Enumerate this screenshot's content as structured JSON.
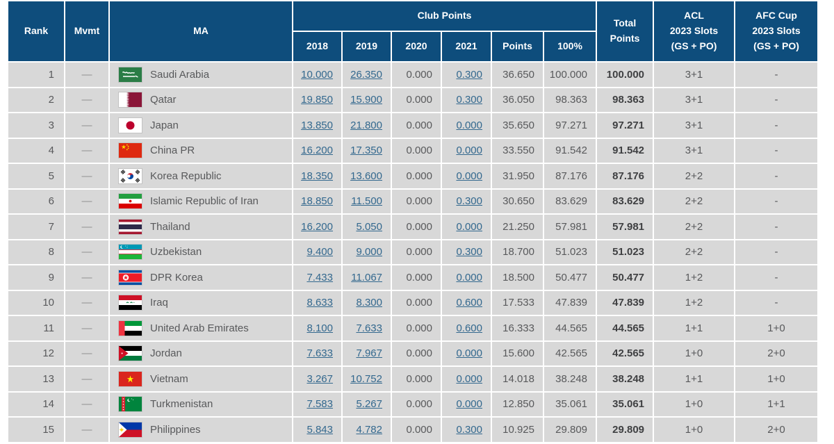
{
  "table": {
    "headers": {
      "rank": "Rank",
      "mvmt": "Mvmt",
      "ma": "MA",
      "club_points_group": "Club Points",
      "years": [
        "2018",
        "2019",
        "2020",
        "2021"
      ],
      "points": "Points",
      "pct": "100%",
      "total_points": "Total\nPoints",
      "acl_slots": "ACL\n2023 Slots\n(GS + PO)",
      "afc_cup_slots": "AFC Cup\n2023 Slots\n(GS + PO)"
    },
    "rows": [
      {
        "rank": "1",
        "mvmt": "—",
        "flag": "sa",
        "ma": "Saudi Arabia",
        "y2018": "10.000",
        "y2019": "26.350",
        "y2020": "0.000",
        "y2021": "0.300",
        "points": "36.650",
        "pct": "100.000",
        "total": "100.000",
        "acl": "3+1",
        "afc": "-"
      },
      {
        "rank": "2",
        "mvmt": "—",
        "flag": "qa",
        "ma": "Qatar",
        "y2018": "19.850",
        "y2019": "15.900",
        "y2020": "0.000",
        "y2021": "0.300",
        "points": "36.050",
        "pct": "98.363",
        "total": "98.363",
        "acl": "3+1",
        "afc": "-"
      },
      {
        "rank": "3",
        "mvmt": "—",
        "flag": "jp",
        "ma": "Japan",
        "y2018": "13.850",
        "y2019": "21.800",
        "y2020": "0.000",
        "y2021": "0.000",
        "points": "35.650",
        "pct": "97.271",
        "total": "97.271",
        "acl": "3+1",
        "afc": "-"
      },
      {
        "rank": "4",
        "mvmt": "—",
        "flag": "cn",
        "ma": "China PR",
        "y2018": "16.200",
        "y2019": "17.350",
        "y2020": "0.000",
        "y2021": "0.000",
        "points": "33.550",
        "pct": "91.542",
        "total": "91.542",
        "acl": "3+1",
        "afc": "-"
      },
      {
        "rank": "5",
        "mvmt": "—",
        "flag": "kr",
        "ma": "Korea Republic",
        "y2018": "18.350",
        "y2019": "13.600",
        "y2020": "0.000",
        "y2021": "0.000",
        "points": "31.950",
        "pct": "87.176",
        "total": "87.176",
        "acl": "2+2",
        "afc": "-"
      },
      {
        "rank": "6",
        "mvmt": "—",
        "flag": "ir",
        "ma": "Islamic Republic of Iran",
        "y2018": "18.850",
        "y2019": "11.500",
        "y2020": "0.000",
        "y2021": "0.300",
        "points": "30.650",
        "pct": "83.629",
        "total": "83.629",
        "acl": "2+2",
        "afc": "-"
      },
      {
        "rank": "7",
        "mvmt": "—",
        "flag": "th",
        "ma": "Thailand",
        "y2018": "16.200",
        "y2019": "5.050",
        "y2020": "0.000",
        "y2021": "0.000",
        "points": "21.250",
        "pct": "57.981",
        "total": "57.981",
        "acl": "2+2",
        "afc": "-"
      },
      {
        "rank": "8",
        "mvmt": "—",
        "flag": "uz",
        "ma": "Uzbekistan",
        "y2018": "9.400",
        "y2019": "9.000",
        "y2020": "0.000",
        "y2021": "0.300",
        "points": "18.700",
        "pct": "51.023",
        "total": "51.023",
        "acl": "2+2",
        "afc": "-"
      },
      {
        "rank": "9",
        "mvmt": "—",
        "flag": "kp",
        "ma": "DPR Korea",
        "y2018": "7.433",
        "y2019": "11.067",
        "y2020": "0.000",
        "y2021": "0.000",
        "points": "18.500",
        "pct": "50.477",
        "total": "50.477",
        "acl": "1+2",
        "afc": "-"
      },
      {
        "rank": "10",
        "mvmt": "—",
        "flag": "iq",
        "ma": "Iraq",
        "y2018": "8.633",
        "y2019": "8.300",
        "y2020": "0.000",
        "y2021": "0.600",
        "points": "17.533",
        "pct": "47.839",
        "total": "47.839",
        "acl": "1+2",
        "afc": "-"
      },
      {
        "rank": "11",
        "mvmt": "—",
        "flag": "ae",
        "ma": "United Arab Emirates",
        "y2018": "8.100",
        "y2019": "7.633",
        "y2020": "0.000",
        "y2021": "0.600",
        "points": "16.333",
        "pct": "44.565",
        "total": "44.565",
        "acl": "1+1",
        "afc": "1+0"
      },
      {
        "rank": "12",
        "mvmt": "—",
        "flag": "jo",
        "ma": "Jordan",
        "y2018": "7.633",
        "y2019": "7.967",
        "y2020": "0.000",
        "y2021": "0.000",
        "points": "15.600",
        "pct": "42.565",
        "total": "42.565",
        "acl": "1+0",
        "afc": "2+0"
      },
      {
        "rank": "13",
        "mvmt": "—",
        "flag": "vn",
        "ma": "Vietnam",
        "y2018": "3.267",
        "y2019": "10.752",
        "y2020": "0.000",
        "y2021": "0.000",
        "points": "14.018",
        "pct": "38.248",
        "total": "38.248",
        "acl": "1+1",
        "afc": "1+0"
      },
      {
        "rank": "14",
        "mvmt": "—",
        "flag": "tm",
        "ma": "Turkmenistan",
        "y2018": "7.583",
        "y2019": "5.267",
        "y2020": "0.000",
        "y2021": "0.000",
        "points": "12.850",
        "pct": "35.061",
        "total": "35.061",
        "acl": "1+0",
        "afc": "1+1"
      },
      {
        "rank": "15",
        "mvmt": "—",
        "flag": "ph",
        "ma": "Philippines",
        "y2018": "5.843",
        "y2019": "4.782",
        "y2020": "0.000",
        "y2021": "0.300",
        "points": "10.925",
        "pct": "29.809",
        "total": "29.809",
        "acl": "1+0",
        "afc": "2+0"
      }
    ]
  },
  "colors": {
    "header_bg": "#0e4d7c",
    "row_bg": "#d8d8d8",
    "link": "#33688e",
    "body_text": "#58595b"
  }
}
